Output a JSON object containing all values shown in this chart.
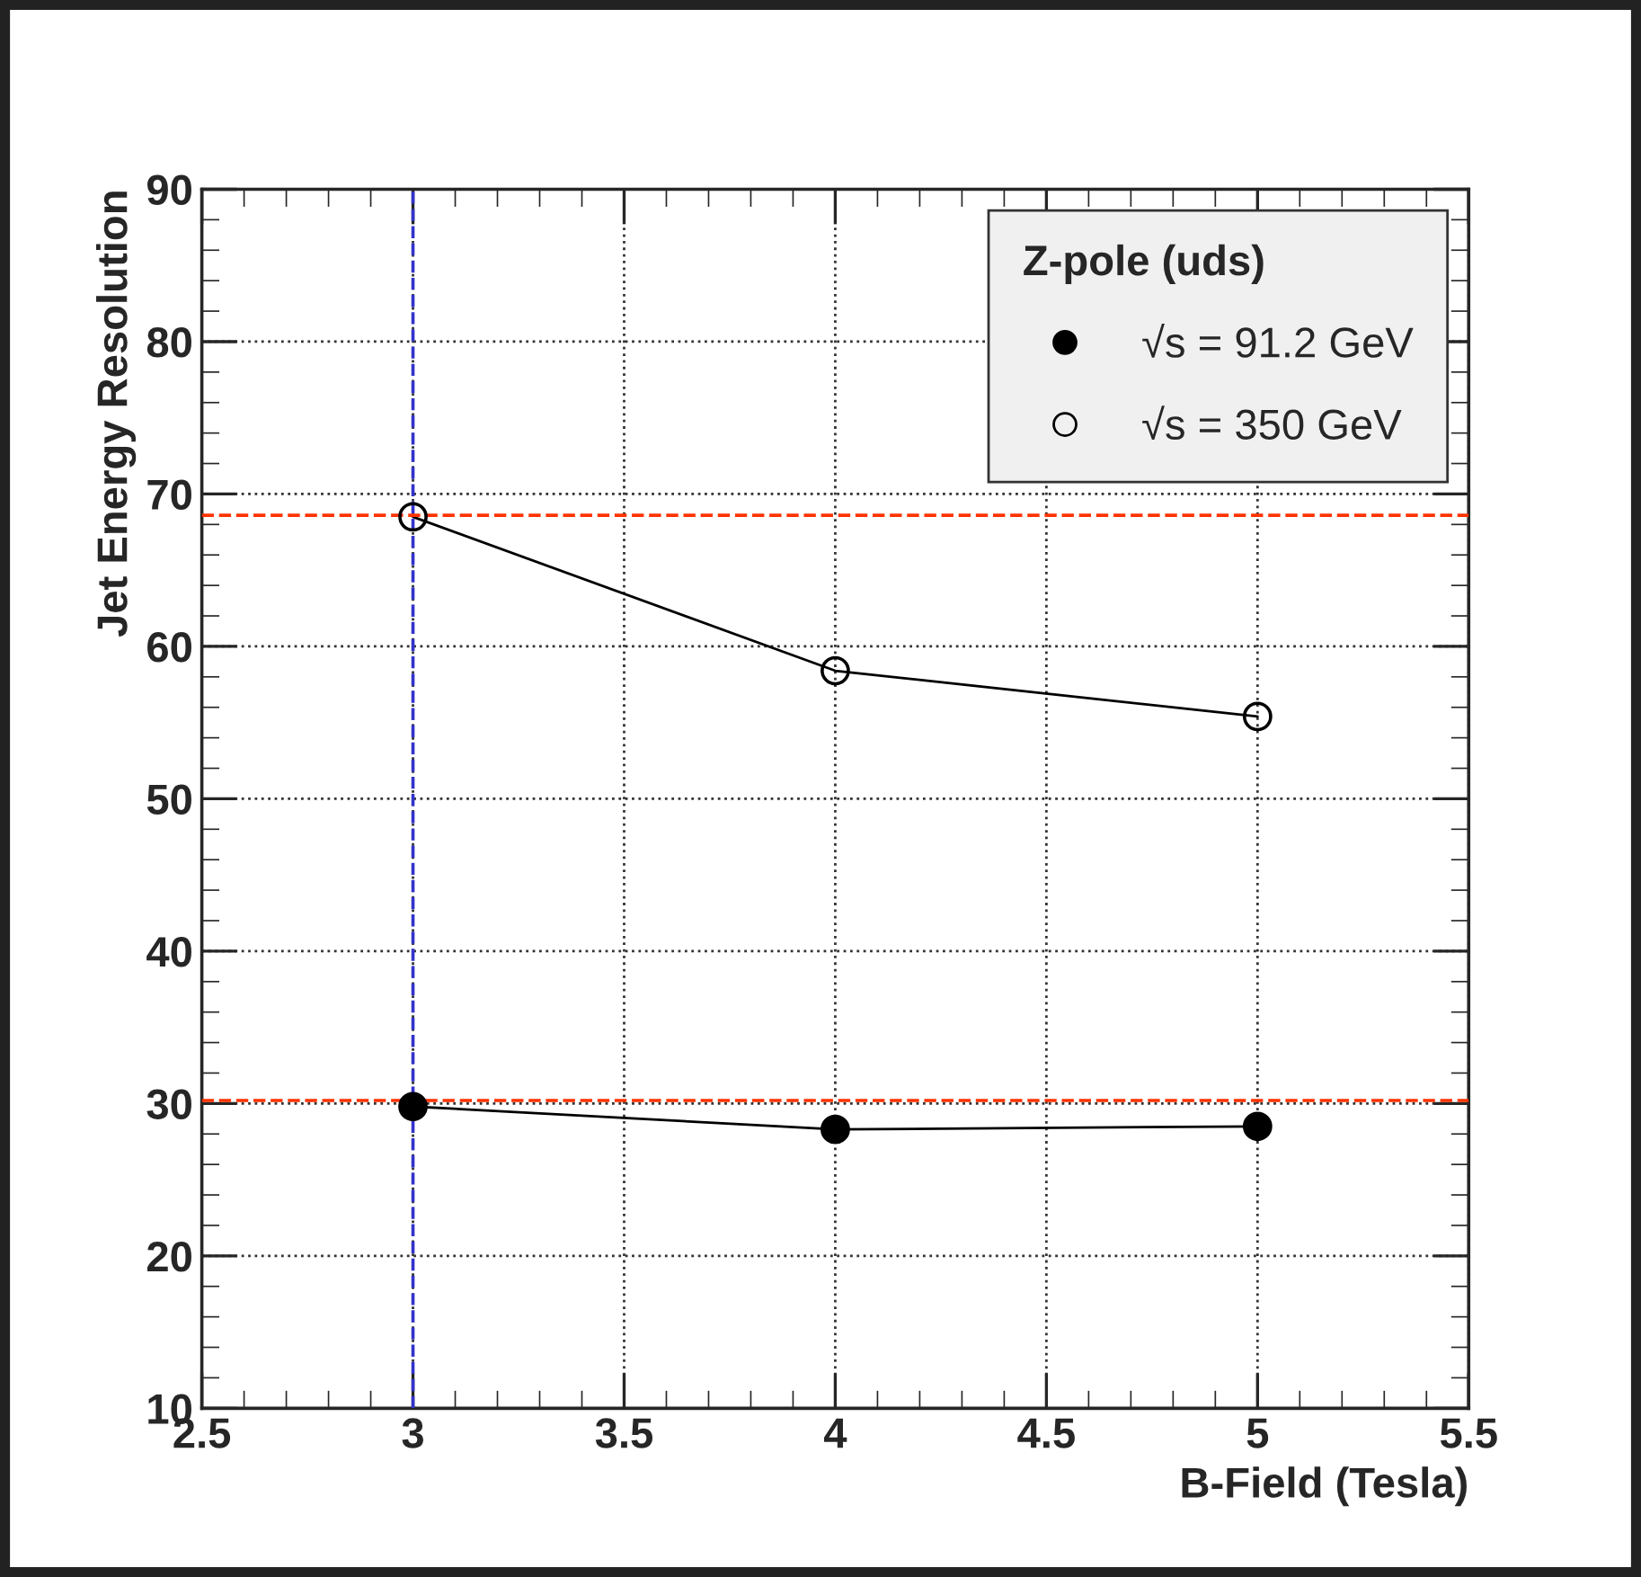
{
  "chart_data": {
    "type": "line",
    "xlabel": "B-Field (Tesla)",
    "ylabel": "Jet Energy Resolution",
    "legend_title": "Z-pole (uds)",
    "series": [
      {
        "name": "√s = 91.2 GeV",
        "color": "#000000",
        "x": [
          3,
          4,
          5
        ],
        "values": [
          29.8,
          28.3,
          28.5
        ]
      },
      {
        "name": "√s = 350 GeV",
        "color": "#000000",
        "x": [
          3,
          4,
          5
        ],
        "values": [
          68.5,
          58.4,
          55.4
        ]
      }
    ],
    "xlim": [
      2.5,
      5.5
    ],
    "xticks": [
      2.5,
      3,
      3.5,
      4,
      4.5,
      5,
      5.5
    ],
    "ylim": [
      10,
      90
    ],
    "yticks": [
      10,
      20,
      30,
      40,
      50,
      60,
      70,
      80,
      90
    ],
    "ref_lines": [
      {
        "axis": "y",
        "value": 68.6,
        "color": "#ff3300",
        "line_style": "dashed"
      },
      {
        "axis": "y",
        "value": 30.2,
        "color": "#ff3300",
        "line_style": "dashed"
      },
      {
        "axis": "x",
        "value": 3.0,
        "color": "#3333cc",
        "line_style": "dashed"
      }
    ],
    "grid": true,
    "legend": "top right",
    "marker": "circle",
    "line_style": "solid"
  }
}
